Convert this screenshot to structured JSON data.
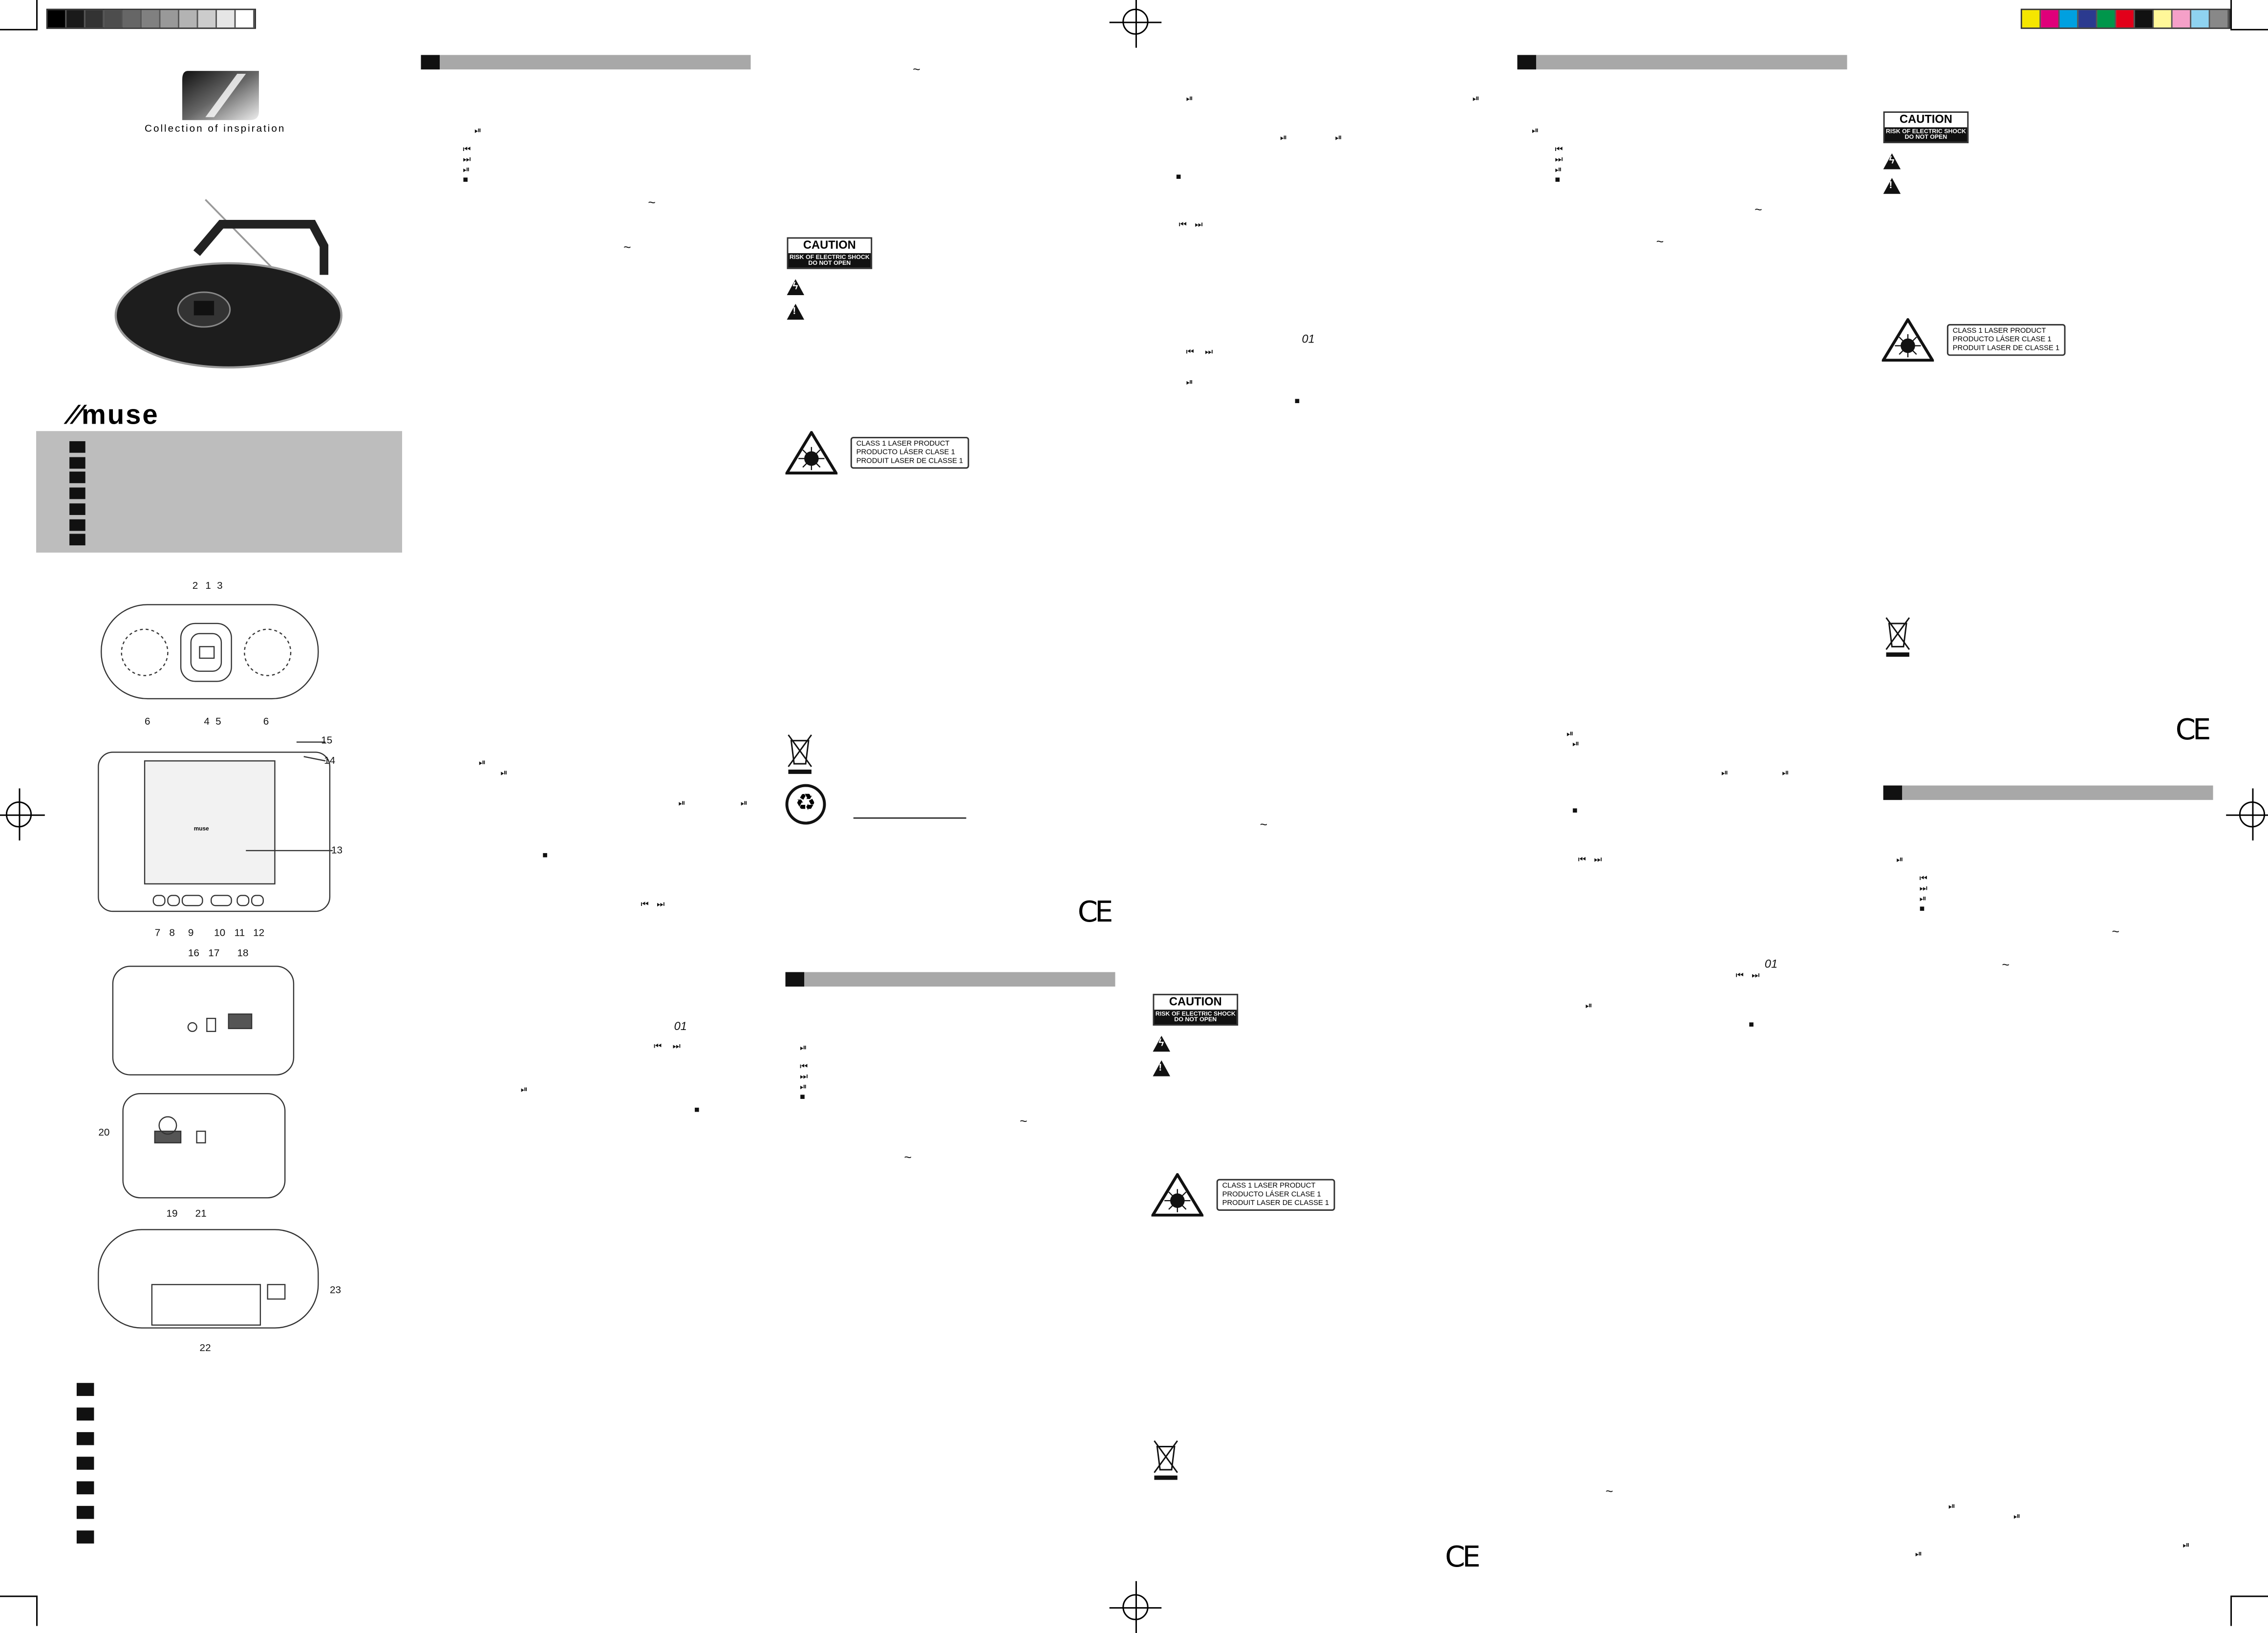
{
  "calibration": {
    "gray_scale": [
      "#000000",
      "#1a1a1a",
      "#333333",
      "#4d4d4d",
      "#666666",
      "#808080",
      "#999999",
      "#b3b3b3",
      "#cccccc",
      "#e6e6e6",
      "#ffffff"
    ],
    "color_scale": [
      "#f5e600",
      "#e0007a",
      "#00a0e0",
      "#2b3a8f",
      "#00964b",
      "#e2001a",
      "#111111",
      "#fff799",
      "#f5a0c8",
      "#8fd3f0",
      "#888888"
    ]
  },
  "cover": {
    "tagline": "Collection of inspiration",
    "brand": "muse"
  },
  "caution_label": {
    "title": "CAUTION",
    "line1": "RISK OF ELECTRIC SHOCK",
    "line2": "DO NOT OPEN"
  },
  "laser_label": {
    "line1": "CLASS 1 LASER PRODUCT",
    "line2": "PRODUCTO LÁSER CLASE 1",
    "line3": "PRODUIT LASER DE CLASSE 1"
  },
  "ce_mark": "CE",
  "display_readout": "01",
  "symbols": {
    "play_pause": "⏯",
    "prev": "⏮",
    "next": "⏭",
    "stop": "■",
    "ac": "~"
  },
  "diagram_labels": {
    "front_top": [
      "2",
      "1",
      "3"
    ],
    "front_bottom": [
      "6",
      "4",
      "5",
      "6"
    ],
    "top_right": [
      "15",
      "14",
      "13"
    ],
    "top_buttons": [
      "7",
      "8",
      "9",
      "10",
      "11",
      "12"
    ],
    "side1": [
      "16",
      "17",
      "18"
    ],
    "side2": [
      "20",
      "19",
      "21"
    ],
    "back": [
      "23",
      "22"
    ]
  },
  "lid_brand": "muse"
}
